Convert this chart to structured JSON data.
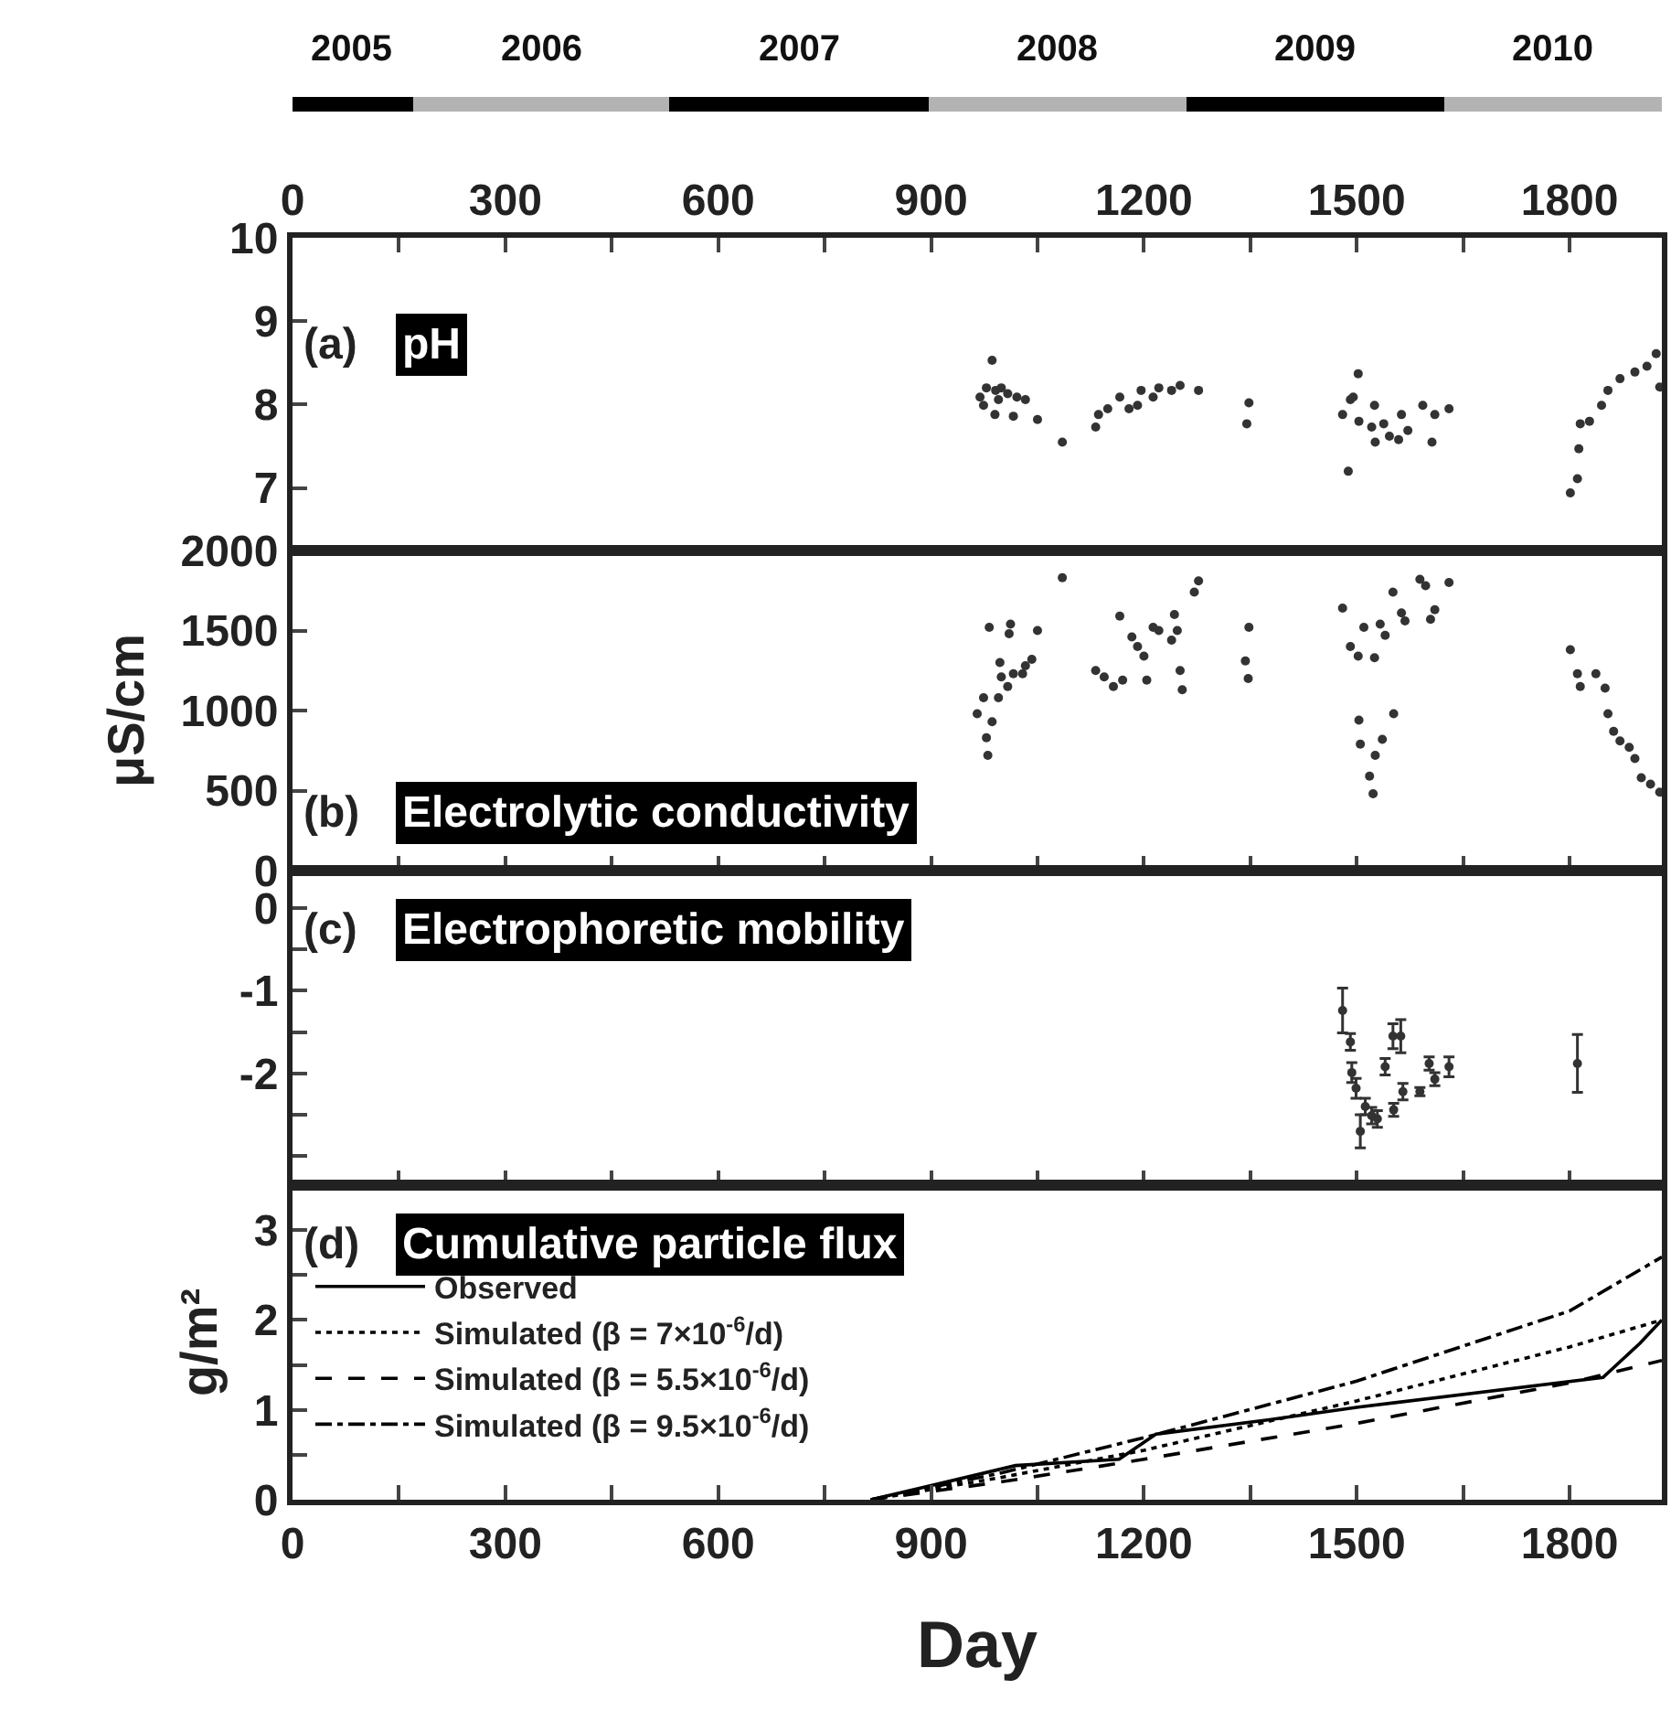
{
  "chart_data": [
    {
      "type": "bar",
      "orientation": "horizontal",
      "stacked": true,
      "tick_labels": false,
      "categories": [
        null
      ],
      "xlim": [
        0,
        1930
      ],
      "xticks": [
        0,
        300,
        600,
        900,
        1200,
        1500,
        1800
      ],
      "series": [
        {
          "name": "2005",
          "color": "#000000",
          "values": [
            170
          ]
        },
        {
          "name": "2006",
          "color": "#b3b3b3",
          "values": [
            362
          ]
        },
        {
          "name": "2007",
          "color": "#000000",
          "values": [
            364
          ]
        },
        {
          "name": "2008",
          "color": "#b3b3b3",
          "values": [
            363
          ]
        },
        {
          "name": "2009",
          "color": "#000000",
          "values": [
            365
          ]
        },
        {
          "name": "2010",
          "color": "#b3b3b3",
          "values": [
            306
          ]
        }
      ]
    },
    {
      "type": "scatter",
      "marker": "circle",
      "color": "#333333",
      "annotations": [
        "(a)",
        "pH"
      ],
      "xlim": [
        0,
        1930
      ],
      "xticks": [
        0,
        {
          "value": 150,
          "label": null
        },
        300,
        {
          "value": 450,
          "label": null
        },
        600,
        {
          "value": 750,
          "label": null
        },
        900,
        {
          "value": 1050,
          "label": null
        },
        1200,
        {
          "value": 1350,
          "label": null
        },
        1500,
        {
          "value": 1650,
          "label": null
        },
        1800
      ],
      "ylim": [
        6.25,
        10
      ],
      "yticks": [
        7,
        8,
        9,
        10
      ],
      "x": [
        986,
        969,
        978,
        991,
        999,
        1008,
        974,
        995,
        1021,
        1033,
        990,
        1016,
        1050,
        1085,
        1132,
        1136,
        1149,
        1166,
        1179,
        1196,
        1191,
        1213,
        1221,
        1239,
        1251,
        1277,
        1348,
        1345,
        1502,
        1491,
        1495,
        1480,
        1503,
        1525,
        1521,
        1538,
        1546,
        1526,
        1559,
        1563,
        1572,
        1593,
        1610,
        1606,
        1630,
        1488,
        1801,
        1811,
        1813,
        1815,
        1828,
        1845,
        1854,
        1871,
        1892,
        1909,
        1922,
        1927
      ],
      "values": [
        8.53,
        8.09,
        8.2,
        8.17,
        8.2,
        8.13,
        7.99,
        8.06,
        8.09,
        8.06,
        7.88,
        7.86,
        7.82,
        7.55,
        7.73,
        7.88,
        7.95,
        8.09,
        7.95,
        8.17,
        7.99,
        8.09,
        8.2,
        8.17,
        8.23,
        8.17,
        8.02,
        7.77,
        8.37,
        8.06,
        8.09,
        7.88,
        7.8,
        7.99,
        7.73,
        7.77,
        7.62,
        7.55,
        7.58,
        7.88,
        7.69,
        7.99,
        7.88,
        7.55,
        7.95,
        7.2,
        6.94,
        7.11,
        7.47,
        7.77,
        7.8,
        7.99,
        8.17,
        8.31,
        8.39,
        8.46,
        8.61,
        8.21
      ]
    },
    {
      "type": "scatter",
      "marker": "circle",
      "color": "#333333",
      "tick_labels": "y",
      "annotations": [
        "(b)",
        "Electrolytic conductivity"
      ],
      "ylabel": "μS/cm",
      "xlim": [
        0,
        1930
      ],
      "xticks": [
        {
          "value": 0,
          "label": null
        },
        {
          "value": 150,
          "label": null
        },
        {
          "value": 300,
          "label": null
        },
        {
          "value": 450,
          "label": null
        },
        {
          "value": 600,
          "label": null
        },
        {
          "value": 750,
          "label": null
        },
        {
          "value": 900,
          "label": null
        },
        {
          "value": 1050,
          "label": null
        },
        {
          "value": 1200,
          "label": null
        },
        {
          "value": 1350,
          "label": null
        },
        {
          "value": 1500,
          "label": null
        },
        {
          "value": 1650,
          "label": null
        },
        {
          "value": 1800,
          "label": null
        }
      ],
      "ylim": [
        0,
        2000
      ],
      "yticks": [
        0,
        500,
        1000,
        1500,
        2000
      ],
      "x": [
        1085,
        982,
        1012,
        1010,
        1050,
        974,
        965,
        978,
        980,
        986,
        995,
        999,
        1008,
        1016,
        1029,
        1042,
        1033,
        997,
        1132,
        1144,
        1157,
        1166,
        1170,
        1183,
        1191,
        1200,
        1213,
        1221,
        1204,
        1239,
        1243,
        1247,
        1251,
        1254,
        1271,
        1277,
        1348,
        1343,
        1347,
        1480,
        1491,
        1502,
        1510,
        1525,
        1533,
        1540,
        1551,
        1563,
        1568,
        1589,
        1597,
        1610,
        1604,
        1630,
        1503,
        1505,
        1526,
        1536,
        1552,
        1518,
        1523,
        1801,
        1811,
        1815,
        1837,
        1850,
        1854,
        1862,
        1871,
        1884,
        1892,
        1901,
        1914,
        1927
      ],
      "values": [
        1830,
        1520,
        1540,
        1480,
        1500,
        1080,
        980,
        830,
        720,
        930,
        1080,
        1210,
        1150,
        1230,
        1230,
        1320,
        1280,
        1300,
        1250,
        1210,
        1150,
        1590,
        1190,
        1460,
        1400,
        1340,
        1520,
        1500,
        1190,
        1440,
        1600,
        1500,
        1250,
        1130,
        1740,
        1810,
        1520,
        1310,
        1200,
        1640,
        1400,
        1340,
        1520,
        1330,
        1540,
        1470,
        1740,
        1610,
        1560,
        1820,
        1780,
        1630,
        1570,
        1800,
        940,
        790,
        720,
        820,
        980,
        590,
        480,
        1380,
        1230,
        1150,
        1230,
        1140,
        980,
        870,
        810,
        770,
        700,
        580,
        540,
        490
      ]
    },
    {
      "type": "scatter",
      "marker": "circle",
      "color": "#333333",
      "tick_labels": "y",
      "annotations": [
        "(c)",
        "Electrophoretic mobility"
      ],
      "xlim": [
        0,
        1930
      ],
      "xticks": [
        {
          "value": 0,
          "label": null
        },
        {
          "value": 150,
          "label": null
        },
        {
          "value": 300,
          "label": null
        },
        {
          "value": 450,
          "label": null
        },
        {
          "value": 600,
          "label": null
        },
        {
          "value": 750,
          "label": null
        },
        {
          "value": 900,
          "label": null
        },
        {
          "value": 1050,
          "label": null
        },
        {
          "value": 1200,
          "label": null
        },
        {
          "value": 1350,
          "label": null
        },
        {
          "value": 1500,
          "label": null
        },
        {
          "value": 1650,
          "label": null
        },
        {
          "value": 1800,
          "label": null
        }
      ],
      "ylim": [
        -3.35,
        0.45
      ],
      "yticks": [
        {
          "value": -3,
          "label": null
        },
        {
          "value": -2.5,
          "label": null
        },
        -2,
        {
          "value": -1.5,
          "label": null
        },
        -1,
        {
          "value": -0.5,
          "label": null
        },
        0
      ],
      "x": [
        1480,
        1491,
        1493,
        1499,
        1505,
        1512,
        1521,
        1529,
        1540,
        1551,
        1552,
        1562,
        1565,
        1589,
        1602,
        1610,
        1630,
        1811
      ],
      "values": [
        -1.24,
        -1.62,
        -1.99,
        -2.18,
        -2.7,
        -2.4,
        -2.51,
        -2.55,
        -1.92,
        -1.55,
        -2.44,
        -1.55,
        -2.22,
        -2.22,
        -1.88,
        -2.07,
        -1.92,
        -1.88
      ],
      "errors": [
        0.27,
        0.1,
        0.12,
        0.12,
        0.2,
        0.1,
        0.1,
        0.1,
        0.1,
        0.15,
        0.08,
        0.2,
        0.1,
        0.05,
        0.08,
        0.08,
        0.12,
        0.35
      ]
    },
    {
      "type": "line",
      "legend": "left",
      "annotations": [
        "(d)",
        "Cumulative particle flux"
      ],
      "xlabel": "Day",
      "ylabel": "g/m²",
      "xlim": [
        0,
        1930
      ],
      "xticks": [
        0,
        {
          "value": 150,
          "label": null
        },
        300,
        {
          "value": 450,
          "label": null
        },
        600,
        {
          "value": 750,
          "label": null
        },
        900,
        {
          "value": 1050,
          "label": null
        },
        1200,
        {
          "value": 1350,
          "label": null
        },
        1500,
        {
          "value": 1650,
          "label": null
        },
        1800
      ],
      "ylim": [
        0,
        3.5
      ],
      "yticks": [
        0,
        {
          "value": 0.5,
          "label": null
        },
        1,
        {
          "value": 1.5,
          "label": null
        },
        2,
        {
          "value": 2.5,
          "label": null
        },
        3
      ],
      "series": [
        {
          "name": "Observed",
          "color": "#000000",
          "line_style": "solid",
          "x": [
            815,
            1019,
            1165,
            1217,
            1377,
            1502,
            1847,
            1899,
            1930
          ],
          "values": [
            0,
            0.38,
            0.45,
            0.73,
            0.89,
            1.03,
            1.36,
            1.74,
            2.0
          ]
        },
        {
          "name": "Simulated (β = 7×10$^{-6}$/d)",
          "color": "#000000",
          "line_style": "dotted",
          "x": [
            815,
            1000,
            1200,
            1500,
            1800,
            1930
          ],
          "values": [
            0,
            0.25,
            0.55,
            1.1,
            1.7,
            2.0
          ]
        },
        {
          "name": "Simulated (β = 5.5×10$^{-6}$/d)",
          "color": "#000000",
          "line_style": "dashed",
          "x": [
            815,
            1000,
            1200,
            1500,
            1800,
            1930
          ],
          "values": [
            0,
            0.2,
            0.45,
            0.85,
            1.3,
            1.55
          ]
        },
        {
          "name": "Simulated (β = 9.5×10$^{-6}$/d)",
          "color": "#000000",
          "line_style": "dashdot",
          "x": [
            815,
            1000,
            1200,
            1500,
            1800,
            1930
          ],
          "values": [
            0,
            0.3,
            0.69,
            1.32,
            2.1,
            2.7
          ]
        }
      ]
    }
  ]
}
